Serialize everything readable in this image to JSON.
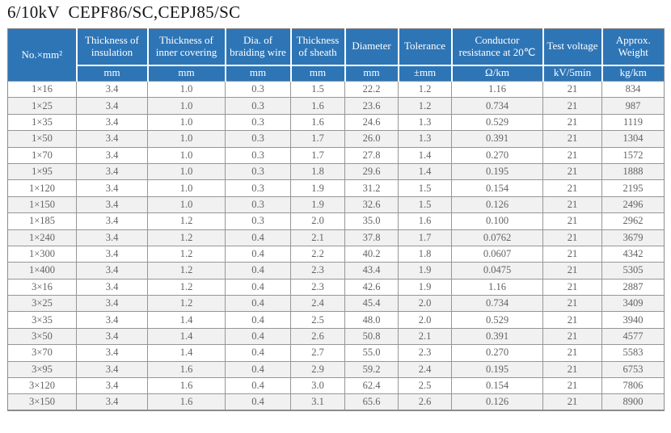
{
  "title": "6/10kV  CEPF86/SC,CEPJ85/SC",
  "colors": {
    "header_bg": "#2e75b6",
    "header_text": "#ffffff",
    "row_stripe": "#f1f1f1",
    "data_text": "#636363",
    "grid_line": "#969696"
  },
  "table": {
    "columns": [
      {
        "id": "spec",
        "label": "No.×mm²",
        "unit": ""
      },
      {
        "id": "insulation-thickness",
        "label": "Thickness of insulation",
        "unit": "mm"
      },
      {
        "id": "inner-covering-thickness",
        "label": "Thickness of inner covering",
        "unit": "mm"
      },
      {
        "id": "braiding-wire-dia",
        "label": "Dia. of braiding wire",
        "unit": "mm"
      },
      {
        "id": "sheath-thickness",
        "label": "Thickness of sheath",
        "unit": "mm"
      },
      {
        "id": "diameter",
        "label": "Diameter",
        "unit": "mm"
      },
      {
        "id": "tolerance",
        "label": "Tolerance",
        "unit": "±mm"
      },
      {
        "id": "conductor-resistance",
        "label": "Conductor resistance at 20℃",
        "unit": "Ω/km"
      },
      {
        "id": "test-voltage",
        "label": "Test voltage",
        "unit": "kV/5min"
      },
      {
        "id": "approx-weight",
        "label": "Approx. Weight",
        "unit": "kg/km"
      }
    ],
    "rows": [
      [
        "1×16",
        "3.4",
        "1.0",
        "0.3",
        "1.5",
        "22.2",
        "1.2",
        "1.16",
        "21",
        "834"
      ],
      [
        "1×25",
        "3.4",
        "1.0",
        "0.3",
        "1.6",
        "23.6",
        "1.2",
        "0.734",
        "21",
        "987"
      ],
      [
        "1×35",
        "3.4",
        "1.0",
        "0.3",
        "1.6",
        "24.6",
        "1.3",
        "0.529",
        "21",
        "1119"
      ],
      [
        "1×50",
        "3.4",
        "1.0",
        "0.3",
        "1.7",
        "26.0",
        "1.3",
        "0.391",
        "21",
        "1304"
      ],
      [
        "1×70",
        "3.4",
        "1.0",
        "0.3",
        "1.7",
        "27.8",
        "1.4",
        "0.270",
        "21",
        "1572"
      ],
      [
        "1×95",
        "3.4",
        "1.0",
        "0.3",
        "1.8",
        "29.6",
        "1.4",
        "0.195",
        "21",
        "1888"
      ],
      [
        "1×120",
        "3.4",
        "1.0",
        "0.3",
        "1.9",
        "31.2",
        "1.5",
        "0.154",
        "21",
        "2195"
      ],
      [
        "1×150",
        "3.4",
        "1.0",
        "0.3",
        "1.9",
        "32.6",
        "1.5",
        "0.126",
        "21",
        "2496"
      ],
      [
        "1×185",
        "3.4",
        "1.2",
        "0.3",
        "2.0",
        "35.0",
        "1.6",
        "0.100",
        "21",
        "2962"
      ],
      [
        "1×240",
        "3.4",
        "1.2",
        "0.4",
        "2.1",
        "37.8",
        "1.7",
        "0.0762",
        "21",
        "3679"
      ],
      [
        "1×300",
        "3.4",
        "1.2",
        "0.4",
        "2.2",
        "40.2",
        "1.8",
        "0.0607",
        "21",
        "4342"
      ],
      [
        "1×400",
        "3.4",
        "1.2",
        "0.4",
        "2.3",
        "43.4",
        "1.9",
        "0.0475",
        "21",
        "5305"
      ],
      [
        "3×16",
        "3.4",
        "1.2",
        "0.4",
        "2.3",
        "42.6",
        "1.9",
        "1.16",
        "21",
        "2887"
      ],
      [
        "3×25",
        "3.4",
        "1.2",
        "0.4",
        "2.4",
        "45.4",
        "2.0",
        "0.734",
        "21",
        "3409"
      ],
      [
        "3×35",
        "3.4",
        "1.4",
        "0.4",
        "2.5",
        "48.0",
        "2.0",
        "0.529",
        "21",
        "3940"
      ],
      [
        "3×50",
        "3.4",
        "1.4",
        "0.4",
        "2.6",
        "50.8",
        "2.1",
        "0.391",
        "21",
        "4577"
      ],
      [
        "3×70",
        "3.4",
        "1.4",
        "0.4",
        "2.7",
        "55.0",
        "2.3",
        "0.270",
        "21",
        "5583"
      ],
      [
        "3×95",
        "3.4",
        "1.6",
        "0.4",
        "2.9",
        "59.2",
        "2.4",
        "0.195",
        "21",
        "6753"
      ],
      [
        "3×120",
        "3.4",
        "1.6",
        "0.4",
        "3.0",
        "62.4",
        "2.5",
        "0.154",
        "21",
        "7806"
      ],
      [
        "3×150",
        "3.4",
        "1.6",
        "0.4",
        "3.1",
        "65.6",
        "2.6",
        "0.126",
        "21",
        "8900"
      ]
    ]
  }
}
